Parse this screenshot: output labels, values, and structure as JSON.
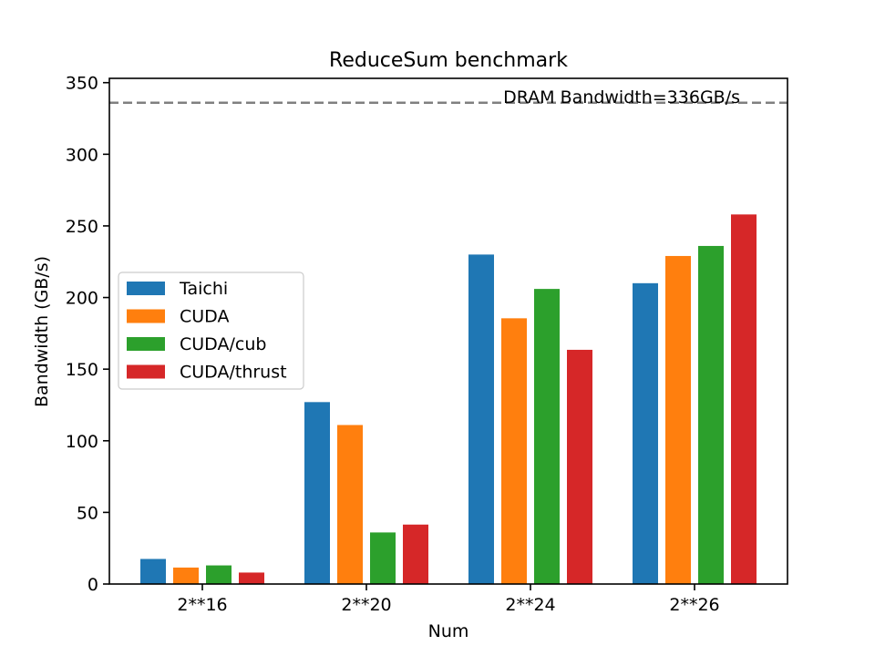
{
  "chart_data": {
    "type": "bar",
    "title": "ReduceSum benchmark",
    "xlabel": "Num",
    "ylabel": "Bandwidth (GB/s)",
    "ylim": [
      0,
      350
    ],
    "yticks": [
      0,
      50,
      100,
      150,
      200,
      250,
      300,
      350
    ],
    "categories": [
      "2**16",
      "2**20",
      "2**24",
      "2**26"
    ],
    "series": [
      {
        "name": "Taichi",
        "color": "#1f77b4",
        "values": [
          17.5,
          127,
          230,
          210
        ]
      },
      {
        "name": "CUDA",
        "color": "#ff7f0e",
        "values": [
          11.5,
          111,
          185.5,
          229
        ]
      },
      {
        "name": "CUDA/cub",
        "color": "#2ca02c",
        "values": [
          13,
          36,
          206,
          236
        ]
      },
      {
        "name": "CUDA/thrust",
        "color": "#d62728",
        "values": [
          8,
          41.5,
          163.5,
          258
        ]
      }
    ],
    "reference_line": {
      "value": 336,
      "label": "DRAM Bandwidth=336GB/s",
      "color": "#808080",
      "style": "dashed"
    },
    "legend_position": "center-left",
    "grid": false
  }
}
